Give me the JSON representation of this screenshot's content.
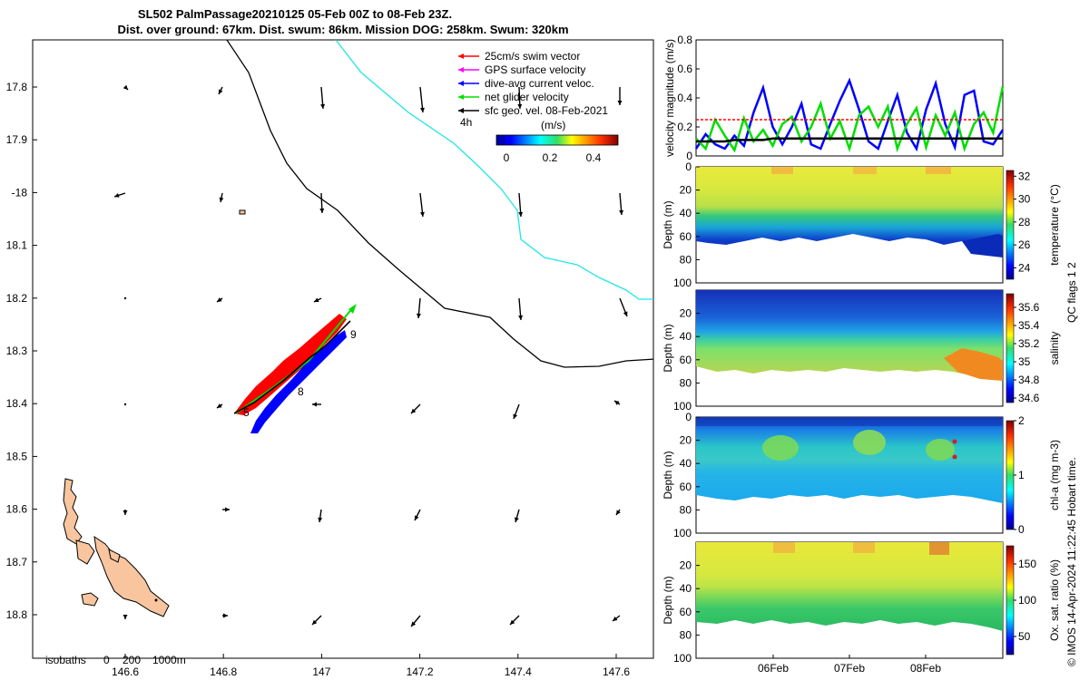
{
  "title": {
    "line1": "SL502 PalmPassage20210125 05-Feb 00Z to 08-Feb 23Z.",
    "line2": "Dist. over ground: 67km. Dist. swum: 86km. Mission DOG: 258km. Swum: 320km"
  },
  "map": {
    "lat_ticks": [
      "17.8",
      "17.9",
      "-18",
      "18.1",
      "18.2",
      "18.3",
      "18.4",
      "18.5",
      "18.6",
      "18.7",
      "18.8"
    ],
    "lon_ticks": [
      "146.6",
      "146.8",
      "147",
      "147.2",
      "147.4",
      "147.6"
    ],
    "legend": [
      {
        "label": "25cm/s swim vector",
        "color": "#ff0000"
      },
      {
        "label": "GPS surface velocity",
        "color": "#ff00ff"
      },
      {
        "label": "dive-avg current veloc.",
        "color": "#0000ff"
      },
      {
        "label": "net glider velocity",
        "color": "#00dd00"
      },
      {
        "label": "sfc geo. vel. 08-Feb-2021",
        "color": "#000000"
      }
    ],
    "scale_label": "4h",
    "colorbar_unit": "(m/s)",
    "colorbar_ticks": [
      "0",
      "0.2",
      "0.4"
    ],
    "day_labels": [
      "5",
      "8",
      "9"
    ],
    "isobath_label": "isobaths",
    "isobath_values": [
      "0",
      "200",
      "1000m"
    ],
    "colors": {
      "land": "#f8c59f",
      "isobath_200": "#000000",
      "isobath_1000": "#22e5e5",
      "swim": "#ff0000",
      "current": "#0000ff",
      "net": "#00dd00"
    }
  },
  "chart_data": [
    {
      "type": "line",
      "ylabel": "velocity magnitude (m/s)",
      "ylim": [
        0,
        0.8
      ],
      "yticks": [
        "0",
        "0.2",
        "0.4",
        "0.6",
        "0.8"
      ],
      "x": [
        0,
        3,
        6,
        9,
        12,
        15,
        18,
        21,
        24,
        27,
        30,
        33,
        36,
        39,
        42,
        45,
        48,
        51,
        54,
        57,
        60,
        63,
        66,
        69,
        72,
        75,
        78,
        81,
        84,
        87,
        90,
        93,
        96
      ],
      "series": [
        {
          "name": "dive-avg current veloc.",
          "color": "#0000ff",
          "values": [
            0.05,
            0.15,
            0.08,
            0.05,
            0.14,
            0.07,
            0.3,
            0.47,
            0.2,
            0.08,
            0.2,
            0.36,
            0.08,
            0.05,
            0.22,
            0.38,
            0.52,
            0.32,
            0.1,
            0.05,
            0.24,
            0.42,
            0.16,
            0.05,
            0.32,
            0.5,
            0.22,
            0.06,
            0.42,
            0.45,
            0.1,
            0.08,
            0.18
          ]
        },
        {
          "name": "net glider velocity",
          "color": "#00dd00",
          "values": [
            0.12,
            0.05,
            0.25,
            0.14,
            0.04,
            0.26,
            0.1,
            0.18,
            0.07,
            0.22,
            0.27,
            0.1,
            0.2,
            0.36,
            0.12,
            0.24,
            0.05,
            0.28,
            0.34,
            0.2,
            0.34,
            0.05,
            0.22,
            0.33,
            0.06,
            0.28,
            0.14,
            0.3,
            0.05,
            0.22,
            0.3,
            0.16,
            0.48
          ]
        },
        {
          "name": "25cm/s swim vector",
          "color": "#ff0000",
          "values": [
            0.25,
            0.25,
            0.25,
            0.25,
            0.25,
            0.25,
            0.25,
            0.25,
            0.25,
            0.25,
            0.25,
            0.25,
            0.25,
            0.25,
            0.25,
            0.25,
            0.25,
            0.25,
            0.25,
            0.25,
            0.25,
            0.25,
            0.25,
            0.25,
            0.25,
            0.25,
            0.25,
            0.25,
            0.25,
            0.25,
            0.25,
            0.25,
            0.25
          ]
        },
        {
          "name": "sfc geo. vel.",
          "color": "#000000",
          "values": [
            0.1,
            0.1,
            0.1,
            0.1,
            0.11,
            0.11,
            0.11,
            0.11,
            0.12,
            0.12,
            0.12,
            0.12,
            0.12,
            0.12,
            0.12,
            0.12,
            0.12,
            0.12,
            0.12,
            0.12,
            0.12,
            0.12,
            0.12,
            0.12,
            0.12,
            0.12,
            0.12,
            0.12,
            0.12,
            0.12,
            0.12,
            0.12,
            0.12
          ]
        }
      ]
    },
    {
      "type": "heatmap",
      "ylabel": "Depth (m)",
      "cbar_label": "temperature (°C)",
      "ylim": [
        0,
        100
      ],
      "yticks": [
        "0",
        "20",
        "40",
        "60",
        "80",
        "100"
      ],
      "cbar_ticks": [
        "32",
        "30",
        "28",
        "26",
        "24"
      ],
      "cbar_range": [
        23,
        32.5
      ]
    },
    {
      "type": "heatmap",
      "ylabel": "Depth (m)",
      "cbar_label": "salinity",
      "ylim": [
        0,
        100
      ],
      "yticks": [
        "20",
        "40",
        "60",
        "80",
        "100"
      ],
      "cbar_ticks": [
        "35.6",
        "35.4",
        "35.2",
        "35",
        "34.8",
        "34.6"
      ],
      "cbar_range": [
        34.55,
        35.75
      ]
    },
    {
      "type": "heatmap",
      "ylabel": "Depth (m)",
      "cbar_label": "chl-a (mg m-3)",
      "ylim": [
        0,
        100
      ],
      "yticks": [
        "0",
        "20",
        "40",
        "60",
        "80",
        "100"
      ],
      "cbar_ticks": [
        "2",
        "1",
        "0"
      ],
      "cbar_range": [
        0,
        2
      ]
    },
    {
      "type": "heatmap",
      "ylabel": "Depth (m)",
      "cbar_label": "Ox. sat. ratio (%)",
      "ylim": [
        0,
        100
      ],
      "yticks": [
        "20",
        "40",
        "60",
        "80",
        "100"
      ],
      "cbar_ticks": [
        "150",
        "100",
        "50"
      ],
      "cbar_range": [
        25,
        175
      ],
      "xticks": [
        "06Feb",
        "07Feb",
        "08Feb"
      ]
    }
  ],
  "qc_note": "QC flags 1  2",
  "credit": "© IMOS 14-Apr-2024 11:22:45 Hobart time."
}
